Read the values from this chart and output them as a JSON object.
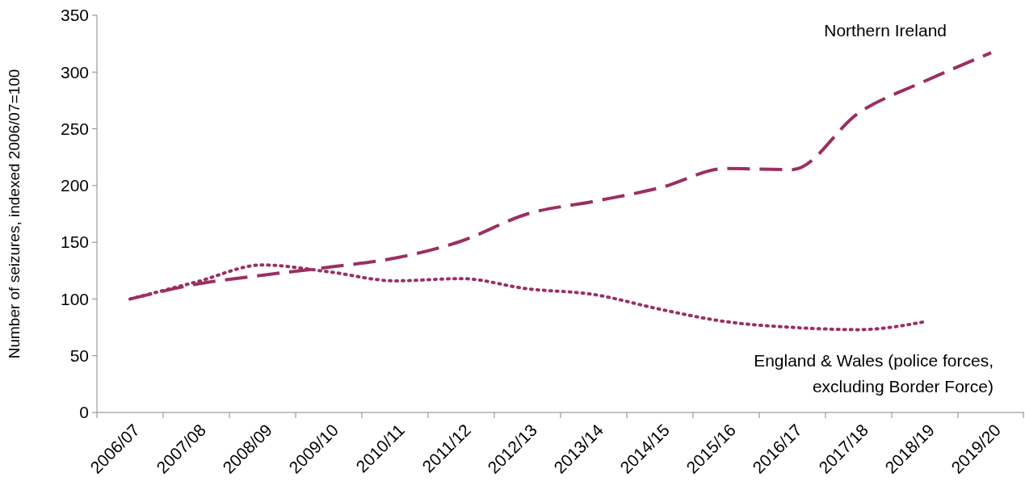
{
  "chart_data": {
    "type": "line",
    "ylabel": "Number of seizures, indexed 2006/07=100",
    "categories": [
      "2006/07",
      "2007/08",
      "2008/09",
      "2009/10",
      "2010/11",
      "2011/12",
      "2012/13",
      "2013/14",
      "2014/15",
      "2015/16",
      "2016/17",
      "2017/18",
      "2018/19",
      "2019/20"
    ],
    "ylim": [
      0,
      350
    ],
    "yticks": [
      0,
      50,
      100,
      150,
      200,
      250,
      300,
      350
    ],
    "series": [
      {
        "name": "Northern Ireland",
        "color": "#9b2f63",
        "line_style": "dashed",
        "values": [
          100,
          113,
          121,
          128,
          136,
          151,
          175,
          186,
          198,
          215,
          214,
          264,
          292,
          317
        ]
      },
      {
        "name": "England & Wales (police forces, excluding Border Force)",
        "color": "#9b2f63",
        "line_style": "dotted",
        "values": [
          100,
          115,
          130,
          124,
          116,
          118,
          109,
          104,
          91,
          80,
          75,
          73,
          80,
          null
        ]
      }
    ]
  }
}
